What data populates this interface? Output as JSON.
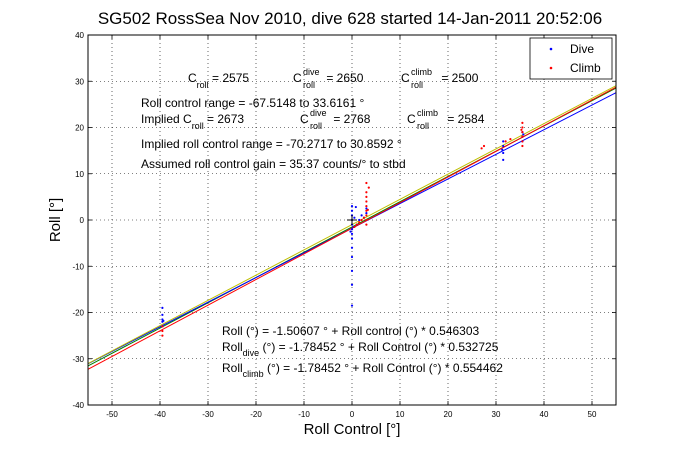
{
  "chart_data": {
    "type": "scatter",
    "title": "SG502 RossSea Nov 2010, dive 628 started 14-Jan-2011 20:52:06",
    "xlabel": "Roll Control [°]",
    "ylabel": "Roll [°]",
    "xlim": [
      -55,
      55
    ],
    "ylim": [
      -40,
      40
    ],
    "xticks": [
      -50,
      -40,
      -30,
      -20,
      -10,
      0,
      10,
      20,
      30,
      40,
      50
    ],
    "yticks": [
      -40,
      -30,
      -20,
      -10,
      0,
      10,
      20,
      30,
      40
    ],
    "grid": true,
    "legend_position": "top-right",
    "legend": [
      {
        "label": "Dive",
        "color": "#0000ff"
      },
      {
        "label": "Climb",
        "color": "#ff0000"
      }
    ],
    "fit_lines": [
      {
        "color": "#008000",
        "intercept": -1.50607,
        "slope": 0.546303
      },
      {
        "color": "#0000ff",
        "intercept": -1.78452,
        "slope": 0.532725
      },
      {
        "color": "#ff0000",
        "intercept": -1.78452,
        "slope": 0.554462
      },
      {
        "color": "#bfbf00",
        "intercept": -1.0,
        "slope": 0.546
      }
    ],
    "series": [
      {
        "name": "Dive",
        "color": "#0000ff",
        "points": [
          [
            -39.5,
            -19
          ],
          [
            -39.5,
            -20.5
          ],
          [
            -39.5,
            -21.5
          ],
          [
            -39.5,
            -22
          ],
          [
            -39.5,
            -23
          ],
          [
            -39.3,
            -21.8
          ],
          [
            0,
            -3
          ],
          [
            0,
            -2
          ],
          [
            0,
            -1
          ],
          [
            0,
            0
          ],
          [
            0,
            1
          ],
          [
            0,
            2
          ],
          [
            0,
            3
          ],
          [
            0,
            -4
          ],
          [
            0,
            -6
          ],
          [
            0,
            -8
          ],
          [
            0,
            -11
          ],
          [
            0,
            -14
          ],
          [
            0,
            -18.5
          ],
          [
            0.3,
            -1.5
          ],
          [
            0.5,
            0.5
          ],
          [
            -0.3,
            -2.5
          ],
          [
            1,
            -1
          ],
          [
            1.5,
            0
          ],
          [
            2,
            1
          ],
          [
            2.5,
            0.5
          ],
          [
            3,
            1.5
          ],
          [
            3,
            2.5
          ],
          [
            0.8,
            2.8
          ],
          [
            31.5,
            13
          ],
          [
            31.5,
            14.5
          ],
          [
            31.5,
            16
          ],
          [
            31.5,
            17
          ],
          [
            31.3,
            15.2
          ],
          [
            35.5,
            17
          ],
          [
            35.5,
            18
          ],
          [
            35.5,
            19
          ],
          [
            35.7,
            18.5
          ]
        ]
      },
      {
        "name": "Climb",
        "color": "#ff0000",
        "points": [
          [
            -39.5,
            -23
          ],
          [
            -39.5,
            -24
          ],
          [
            -39.5,
            -25
          ],
          [
            3,
            -1
          ],
          [
            3,
            0
          ],
          [
            3,
            1
          ],
          [
            3,
            2
          ],
          [
            3,
            3
          ],
          [
            3,
            4
          ],
          [
            3,
            5
          ],
          [
            3,
            6
          ],
          [
            3,
            8
          ],
          [
            3.5,
            7
          ],
          [
            2.5,
            0.5
          ],
          [
            2,
            0
          ],
          [
            1.5,
            -0.5
          ],
          [
            1,
            -1
          ],
          [
            0.5,
            -1.5
          ],
          [
            3.3,
            2.2
          ],
          [
            35.5,
            16
          ],
          [
            35.5,
            17
          ],
          [
            35.5,
            18
          ],
          [
            35.5,
            19
          ],
          [
            35.5,
            20
          ],
          [
            35.5,
            21
          ],
          [
            35.3,
            19.5
          ],
          [
            32,
            17
          ],
          [
            33,
            17.5
          ],
          [
            27,
            15.5
          ],
          [
            27.5,
            16
          ]
        ]
      }
    ],
    "annotations": {
      "c_roll": "C",
      "c_roll_sub": "roll",
      "c_roll_val": " = 2575",
      "c_dive": "C",
      "c_dive_sup": "dive",
      "c_dive_sub": "roll",
      "c_dive_val": " = 2650",
      "c_climb": "C",
      "c_climb_sup": "climb",
      "c_climb_sub": "roll",
      "c_climb_val": " = 2500",
      "range": "Roll control range = -67.5148 to 33.6161 °",
      "implied_c": "Implied C",
      "implied_c_sub": "roll",
      "implied_c_val": " = 2673",
      "implied_dive": "C",
      "implied_dive_sup": "dive",
      "implied_dive_sub": "roll",
      "implied_dive_val": " = 2768",
      "implied_climb": "C",
      "implied_climb_sup": "climb",
      "implied_climb_sub": "roll",
      "implied_climb_val": " = 2584",
      "implied_range": "Implied roll control range = -70.2717 to 30.8592 °",
      "gain": "Assumed roll control gain = 35.37 counts/° to stbd",
      "fit_all": "Roll (°) = -1.50607 ° + Roll control (°) * 0.546303",
      "fit_dive_pre": "Roll",
      "fit_dive_sub": "dive",
      "fit_dive_post": " (°) = -1.78452 ° + Roll Control (°) * 0.532725",
      "fit_climb_pre": "Roll",
      "fit_climb_sub": "climb",
      "fit_climb_post": " (°) = -1.78452 ° + Roll Control (°) * 0.554462"
    }
  }
}
